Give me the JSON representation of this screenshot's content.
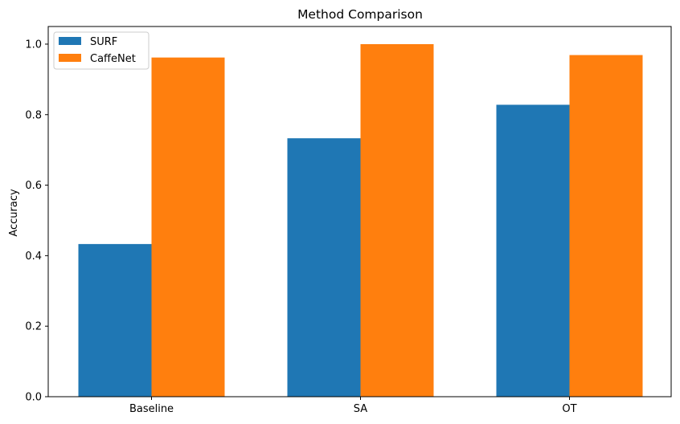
{
  "chart_data": {
    "type": "bar",
    "title": "Method Comparison",
    "xlabel": "",
    "ylabel": "Accuracy",
    "categories": [
      "Baseline",
      "SA",
      "OT"
    ],
    "series": [
      {
        "name": "SURF",
        "values": [
          0.433,
          0.733,
          0.828
        ],
        "color": "#1f77b4"
      },
      {
        "name": "CaffeNet",
        "values": [
          0.962,
          1.0,
          0.969
        ],
        "color": "#ff7f0e"
      }
    ],
    "ylim": [
      0,
      1.05
    ],
    "yticks": [
      "0.0",
      "0.2",
      "0.4",
      "0.6",
      "0.8",
      "1.0"
    ],
    "grid": false,
    "legend_position": "top-left"
  }
}
